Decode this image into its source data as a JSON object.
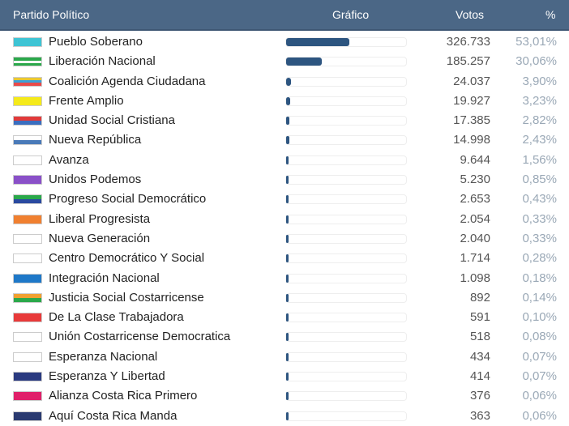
{
  "header": {
    "party": "Partido Político",
    "chart": "Gráfico",
    "votes": "Votos",
    "pct": "%"
  },
  "bar_color": "#2d5580",
  "rows": [
    {
      "name": "Pueblo Soberano",
      "votes": "326.733",
      "pct": "53,01%",
      "pct_value": 53.01,
      "flag_colors": [
        "#3ec4d4"
      ]
    },
    {
      "name": "Liberación Nacional",
      "votes": "185.257",
      "pct": "30,06%",
      "pct_value": 30.06,
      "flag_colors": [
        "#2aa84a",
        "#ffffff",
        "#2aa84a"
      ]
    },
    {
      "name": "Coalición Agenda Ciudadana",
      "votes": "24.037",
      "pct": "3,90%",
      "pct_value": 3.9,
      "flag_colors": [
        "#e8c832",
        "#3aa0d8",
        "#e84a4a"
      ]
    },
    {
      "name": "Frente Amplio",
      "votes": "19.927",
      "pct": "3,23%",
      "pct_value": 3.23,
      "flag_colors": [
        "#f5ea1a"
      ]
    },
    {
      "name": "Unidad Social Cristiana",
      "votes": "17.385",
      "pct": "2,82%",
      "pct_value": 2.82,
      "flag_colors": [
        "#e23a3a",
        "#3a6ec0"
      ]
    },
    {
      "name": "Nueva República",
      "votes": "14.998",
      "pct": "2,43%",
      "pct_value": 2.43,
      "flag_colors": [
        "#ffffff",
        "#4a7ab8"
      ]
    },
    {
      "name": "Avanza",
      "votes": "9.644",
      "pct": "1,56%",
      "pct_value": 1.56,
      "flag_colors": [
        "#ffffff"
      ]
    },
    {
      "name": "Unidos Podemos",
      "votes": "5.230",
      "pct": "0,85%",
      "pct_value": 0.85,
      "flag_colors": [
        "#8a50c8"
      ]
    },
    {
      "name": "Progreso Social Democrático",
      "votes": "2.653",
      "pct": "0,43%",
      "pct_value": 0.43,
      "flag_colors": [
        "#2aa84a",
        "#2a4aa0"
      ]
    },
    {
      "name": "Liberal Progresista",
      "votes": "2.054",
      "pct": "0,33%",
      "pct_value": 0.33,
      "flag_colors": [
        "#f08030"
      ]
    },
    {
      "name": "Nueva Generación",
      "votes": "2.040",
      "pct": "0,33%",
      "pct_value": 0.33,
      "flag_colors": [
        "#ffffff"
      ]
    },
    {
      "name": "Centro Democrático Y Social",
      "votes": "1.714",
      "pct": "0,28%",
      "pct_value": 0.28,
      "flag_colors": [
        "#ffffff"
      ]
    },
    {
      "name": "Integración Nacional",
      "votes": "1.098",
      "pct": "0,18%",
      "pct_value": 0.18,
      "flag_colors": [
        "#1e78c8"
      ]
    },
    {
      "name": "Justicia Social Costarricense",
      "votes": "892",
      "pct": "0,14%",
      "pct_value": 0.14,
      "flag_colors": [
        "#f0a030",
        "#2aa84a"
      ]
    },
    {
      "name": "De La Clase Trabajadora",
      "votes": "591",
      "pct": "0,10%",
      "pct_value": 0.1,
      "flag_colors": [
        "#e83a3a"
      ]
    },
    {
      "name": "Unión Costarricense Democratica",
      "votes": "518",
      "pct": "0,08%",
      "pct_value": 0.08,
      "flag_colors": [
        "#ffffff"
      ]
    },
    {
      "name": "Esperanza Nacional",
      "votes": "434",
      "pct": "0,07%",
      "pct_value": 0.07,
      "flag_colors": [
        "#ffffff"
      ]
    },
    {
      "name": "Esperanza Y Libertad",
      "votes": "414",
      "pct": "0,07%",
      "pct_value": 0.07,
      "flag_colors": [
        "#2a3a80"
      ]
    },
    {
      "name": "Alianza Costa Rica Primero",
      "votes": "376",
      "pct": "0,06%",
      "pct_value": 0.06,
      "flag_colors": [
        "#e0206a"
      ]
    },
    {
      "name": "Aquí Costa Rica Manda",
      "votes": "363",
      "pct": "0,06%",
      "pct_value": 0.06,
      "flag_colors": [
        "#2a3a70"
      ]
    }
  ]
}
